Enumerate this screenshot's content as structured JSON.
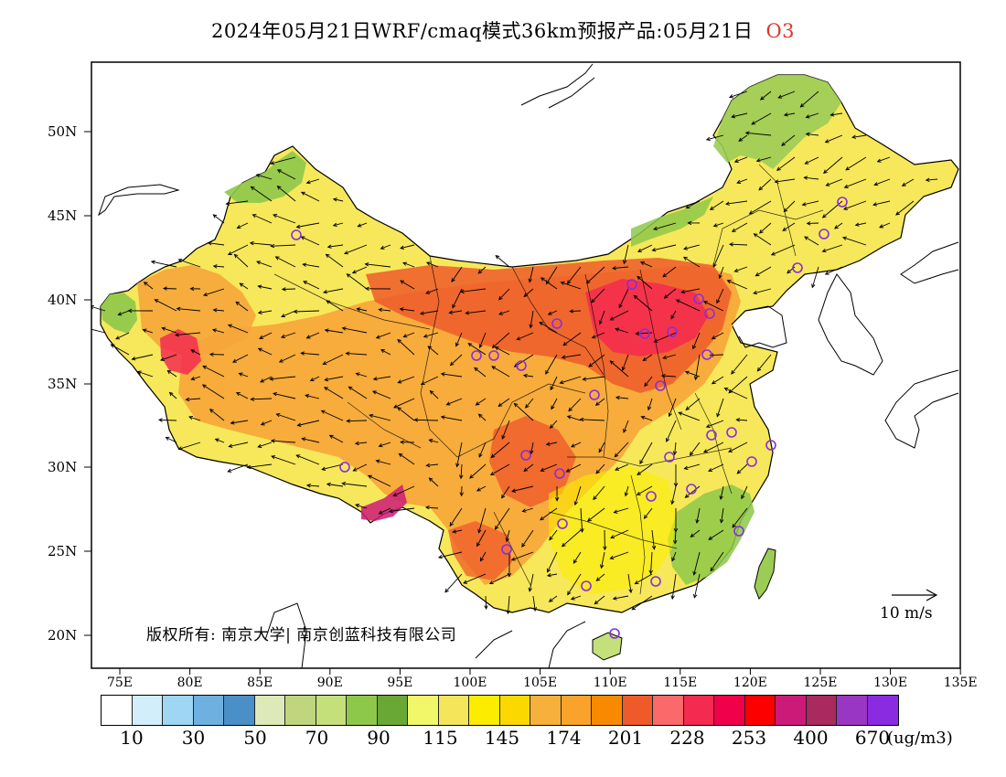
{
  "title": {
    "text": "2024年05月21日WRF/cmaq模式36km预报产品:05月21日",
    "pollutant": "O3"
  },
  "axes": {
    "lat_labels": [
      "50N",
      "45N",
      "40N",
      "35N",
      "30N",
      "25N",
      "20N"
    ],
    "lon_labels": [
      "75E",
      "80E",
      "85E",
      "90E",
      "95E",
      "100E",
      "105E",
      "110E",
      "115E",
      "120E",
      "125E",
      "130E",
      "135E"
    ]
  },
  "copyright": "版权所有: 南京大学| 南京创蓝科技有限公司",
  "wind_reference": "10 m/s",
  "colorbar": {
    "colors": [
      "#ffffff",
      "#d3eefb",
      "#9ed6f4",
      "#6eb1e0",
      "#4a8fc7",
      "#dde9b8",
      "#c0d67e",
      "#c4e07a",
      "#8ec84a",
      "#6aa835",
      "#f2f76a",
      "#f4e55a",
      "#fcec00",
      "#fbd900",
      "#f6b03b",
      "#f9a32a",
      "#f98a00",
      "#ef5a2a",
      "#fa6a6a",
      "#f42a50",
      "#ef0048",
      "#fc0000",
      "#cc1a78",
      "#a82a5e",
      "#9a36c4",
      "#8a2be2"
    ],
    "labels": [
      "10",
      "30",
      "50",
      "70",
      "90",
      "115",
      "145",
      "174",
      "201",
      "228",
      "253",
      "400",
      "670"
    ],
    "unit": "(ug/m3)"
  },
  "colors": {
    "pollutant_label": "#e0352b",
    "station_marker": "#8a2be2",
    "frame": "#000000"
  }
}
